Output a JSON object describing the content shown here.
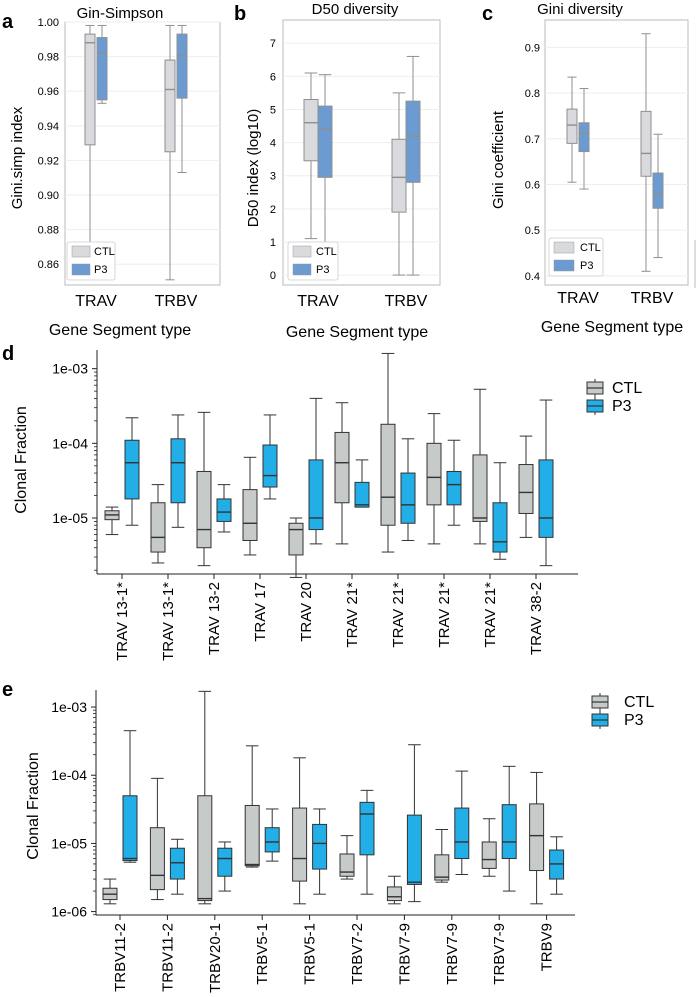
{
  "colors": {
    "ctl_top": "#d9dadd",
    "p3_top": "#6b9bd1",
    "ctl_bottom": "#c6cac9",
    "p3_bottom": "#22aee6",
    "whisker_top": "#8f8f8f",
    "whisker_bottom": "#333333"
  },
  "chart_data": [
    {
      "id": "a",
      "panel_label": "a",
      "type": "box",
      "title": "Gin-Simpson",
      "ylabel": "Gini.simp index",
      "xlabel": "Gene Segment type",
      "categories": [
        "TRAV",
        "TRBV"
      ],
      "ylim": [
        0.848,
        1.0
      ],
      "yticks": [
        0.86,
        0.88,
        0.9,
        0.92,
        0.94,
        0.96,
        0.98,
        1.0
      ],
      "ytick_labels": [
        "0.86",
        "0.88",
        "0.90",
        "0.92",
        "0.94",
        "0.96",
        "0.98",
        "1.00"
      ],
      "legend": [
        "CTL",
        "P3"
      ],
      "series": [
        {
          "name": "CTL",
          "boxes": [
            {
              "min": 0.86,
              "q1": 0.929,
              "median": 0.988,
              "q3": 0.993,
              "max": 0.998
            },
            {
              "min": 0.851,
              "q1": 0.925,
              "median": 0.961,
              "q3": 0.978,
              "max": 0.998
            }
          ]
        },
        {
          "name": "P3",
          "boxes": [
            {
              "min": 0.953,
              "q1": 0.955,
              "median": 0.982,
              "q3": 0.991,
              "max": 0.998
            },
            {
              "min": 0.913,
              "q1": 0.956,
              "median": 0.981,
              "q3": 0.993,
              "max": 0.998
            }
          ]
        }
      ]
    },
    {
      "id": "b",
      "panel_label": "b",
      "type": "box",
      "title": "D50 diversity",
      "ylabel": "D50 index (log10)",
      "xlabel": "Gene Segment type",
      "categories": [
        "TRAV",
        "TRBV"
      ],
      "ylim": [
        -0.3,
        7.7
      ],
      "yticks": [
        0,
        1,
        2,
        3,
        4,
        5,
        6,
        7
      ],
      "ytick_labels": [
        "0",
        "1",
        "2",
        "3",
        "4",
        "5",
        "6",
        "7"
      ],
      "legend": [
        "CTL",
        "P3"
      ],
      "series": [
        {
          "name": "CTL",
          "boxes": [
            {
              "min": 1.1,
              "q1": 3.45,
              "median": 4.6,
              "q3": 5.3,
              "max": 6.1
            },
            {
              "min": 0.0,
              "q1": 1.9,
              "median": 2.95,
              "q3": 4.1,
              "max": 5.5
            }
          ]
        },
        {
          "name": "P3",
          "boxes": [
            {
              "min": 0.9,
              "q1": 2.95,
              "median": 4.4,
              "q3": 5.1,
              "max": 6.05
            },
            {
              "min": 0.0,
              "q1": 2.8,
              "median": 4.2,
              "q3": 5.25,
              "max": 6.6
            }
          ]
        }
      ]
    },
    {
      "id": "c",
      "panel_label": "c",
      "type": "box",
      "title": "Gini diversity",
      "ylabel": "Gini coefficient",
      "xlabel": "Gene Segment type",
      "categories": [
        "TRAV",
        "TRBV"
      ],
      "ylim": [
        0.38,
        0.96
      ],
      "yticks": [
        0.4,
        0.5,
        0.6,
        0.7,
        0.8,
        0.9
      ],
      "ytick_labels": [
        "0.4",
        "0.5",
        "0.6",
        "0.7",
        "0.8",
        "0.9"
      ],
      "legend": [
        "CTL",
        "P3"
      ],
      "series": [
        {
          "name": "CTL",
          "boxes": [
            {
              "min": 0.605,
              "q1": 0.69,
              "median": 0.73,
              "q3": 0.765,
              "max": 0.835
            },
            {
              "min": 0.41,
              "q1": 0.618,
              "median": 0.668,
              "q3": 0.76,
              "max": 0.93
            }
          ]
        },
        {
          "name": "P3",
          "boxes": [
            {
              "min": 0.59,
              "q1": 0.672,
              "median": 0.713,
              "q3": 0.735,
              "max": 0.81
            },
            {
              "min": 0.44,
              "q1": 0.548,
              "median": 0.58,
              "q3": 0.625,
              "max": 0.71
            }
          ]
        }
      ]
    },
    {
      "id": "d",
      "panel_label": "d",
      "type": "box",
      "scale": "log",
      "title": "",
      "ylabel": "Clonal Fraction",
      "xlabel": "",
      "categories": [
        "TRAV 13-1*",
        "TRAV 13-1*",
        "TRAV 13-2",
        "TRAV 17",
        "TRAV 20",
        "TRAV 21*",
        "TRAV 21*",
        "TRAV 21*",
        "TRAV 21*",
        "TRAV 38-2"
      ],
      "ylim_log10": [
        -5.75,
        -2.75
      ],
      "yticks_log10": [
        -5,
        -4,
        -3
      ],
      "ytick_labels": [
        "1e-05",
        "1e-04",
        "1e-03"
      ],
      "legend": [
        "CTL",
        "P3"
      ],
      "series": [
        {
          "name": "CTL",
          "boxes": [
            {
              "min": 6e-06,
              "q1": 9.5e-06,
              "median": 1.1e-05,
              "q3": 1.25e-05,
              "max": 1.4e-05
            },
            {
              "min": 2.5e-06,
              "q1": 3.5e-06,
              "median": 5.5e-06,
              "q3": 1.6e-05,
              "max": 2.8e-05
            },
            {
              "min": 2.3e-06,
              "q1": 4e-06,
              "median": 7e-06,
              "q3": 4.2e-05,
              "max": 0.00026
            },
            {
              "min": 3.2e-06,
              "q1": 5e-06,
              "median": 8.5e-06,
              "q3": 2.4e-05,
              "max": 6.5e-05
            },
            {
              "min": 1.6e-06,
              "q1": 3.2e-06,
              "median": 7e-06,
              "q3": 8.5e-06,
              "max": 1e-05
            },
            {
              "min": 4.5e-06,
              "q1": 1.6e-05,
              "median": 5.5e-05,
              "q3": 0.00014,
              "max": 0.00035
            },
            {
              "min": 3.5e-06,
              "q1": 8e-06,
              "median": 1.9e-05,
              "q3": 0.00018,
              "max": 0.0016
            },
            {
              "min": 4.5e-06,
              "q1": 1.5e-05,
              "median": 3.5e-05,
              "q3": 0.0001,
              "max": 0.00025
            },
            {
              "min": 4.5e-06,
              "q1": 9e-06,
              "median": 1e-05,
              "q3": 7e-05,
              "max": 0.00053
            },
            {
              "min": 5.5e-06,
              "q1": 1.15e-05,
              "median": 2.2e-05,
              "q3": 5.2e-05,
              "max": 0.000125
            }
          ]
        },
        {
          "name": "P3",
          "boxes": [
            {
              "min": 8e-06,
              "q1": 1.8e-05,
              "median": 5.5e-05,
              "q3": 0.00011,
              "max": 0.00022
            },
            {
              "min": 7.5e-06,
              "q1": 1.6e-05,
              "median": 5.5e-05,
              "q3": 0.000115,
              "max": 0.00024
            },
            {
              "min": 6.5e-06,
              "q1": 9e-06,
              "median": 1.2e-05,
              "q3": 1.8e-05,
              "max": 2.8e-05
            },
            {
              "min": 1.8e-05,
              "q1": 2.6e-05,
              "median": 3.7e-05,
              "q3": 9.5e-05,
              "max": 0.00024
            },
            {
              "min": 4.5e-06,
              "q1": 7e-06,
              "median": 1e-05,
              "q3": 6e-05,
              "max": 0.0004
            },
            {
              "min": 1.4e-05,
              "q1": 1.4e-05,
              "median": 1.5e-05,
              "q3": 3e-05,
              "max": 6e-05
            },
            {
              "min": 5e-06,
              "q1": 8.5e-06,
              "median": 1.5e-05,
              "q3": 4e-05,
              "max": 0.000115
            },
            {
              "min": 8e-06,
              "q1": 1.5e-05,
              "median": 2.8e-05,
              "q3": 4.2e-05,
              "max": 0.00011
            },
            {
              "min": 2.8e-06,
              "q1": 3.5e-06,
              "median": 4.8e-06,
              "q3": 1.6e-05,
              "max": 5.5e-05
            },
            {
              "min": 2.3e-06,
              "q1": 5.5e-06,
              "median": 1e-05,
              "q3": 6e-05,
              "max": 0.00038
            }
          ]
        }
      ]
    },
    {
      "id": "e",
      "panel_label": "e",
      "type": "box",
      "scale": "log",
      "title": "",
      "ylabel": "Clonal Fraction",
      "xlabel": "",
      "categories": [
        "TRBV11-2",
        "TRBV11-2",
        "TRBV20-1",
        "TRBV5-1",
        "TRBV5-1",
        "TRBV7-2",
        "TRBV7-9",
        "TRBV7-9",
        "TRBV7-9",
        "TRBV9"
      ],
      "ylim_log10": [
        -6.05,
        -2.75
      ],
      "yticks_log10": [
        -6,
        -5,
        -4,
        -3
      ],
      "ytick_labels": [
        "1e-06",
        "1e-05",
        "1e-04",
        "1e-03"
      ],
      "legend": [
        "CTL",
        "P3"
      ],
      "series": [
        {
          "name": "CTL",
          "boxes": [
            {
              "min": 1.3e-06,
              "q1": 1.5e-06,
              "median": 1.8e-06,
              "q3": 2.2e-06,
              "max": 3e-06
            },
            {
              "min": 1.5e-06,
              "q1": 2.1e-06,
              "median": 3.4e-06,
              "q3": 1.7e-05,
              "max": 9e-05
            },
            {
              "min": 1.3e-06,
              "q1": 1.45e-06,
              "median": 1.55e-06,
              "q3": 5e-05,
              "max": 0.0017
            },
            {
              "min": 4.5e-06,
              "q1": 4.7e-06,
              "median": 4.9e-06,
              "q3": 3.6e-05,
              "max": 0.00027
            },
            {
              "min": 1.3e-06,
              "q1": 2.8e-06,
              "median": 6e-06,
              "q3": 3.3e-05,
              "max": 0.00018
            },
            {
              "min": 3e-06,
              "q1": 3.3e-06,
              "median": 3.8e-06,
              "q3": 7e-06,
              "max": 1.3e-05
            },
            {
              "min": 1.3e-06,
              "q1": 1.45e-06,
              "median": 1.65e-06,
              "q3": 2.3e-06,
              "max": 3.3e-06
            },
            {
              "min": 2.7e-06,
              "q1": 2.9e-06,
              "median": 3.2e-06,
              "q3": 6.8e-06,
              "max": 1.6e-05
            },
            {
              "min": 3.3e-06,
              "q1": 4.3e-06,
              "median": 5.8e-06,
              "q3": 1.05e-05,
              "max": 2.3e-05
            },
            {
              "min": 1.3e-06,
              "q1": 4e-06,
              "median": 1.3e-05,
              "q3": 3.8e-05,
              "max": 0.00011
            }
          ]
        },
        {
          "name": "P3",
          "boxes": [
            {
              "min": 5.3e-06,
              "q1": 5.6e-06,
              "median": 6e-06,
              "q3": 5e-05,
              "max": 0.00045
            },
            {
              "min": 1.8e-06,
              "q1": 3e-06,
              "median": 5.2e-06,
              "q3": 8.5e-06,
              "max": 1.15e-05
            },
            {
              "min": 2e-06,
              "q1": 3.3e-06,
              "median": 6e-06,
              "q3": 8.5e-06,
              "max": 1.05e-05
            },
            {
              "min": 5.5e-06,
              "q1": 7.5e-06,
              "median": 1.05e-05,
              "q3": 1.7e-05,
              "max": 3.2e-05
            },
            {
              "min": 1.8e-06,
              "q1": 4.2e-06,
              "median": 1e-05,
              "q3": 1.9e-05,
              "max": 3.2e-05
            },
            {
              "min": 1.8e-06,
              "q1": 6.8e-06,
              "median": 2.7e-05,
              "q3": 4e-05,
              "max": 6e-05
            },
            {
              "min": 1.4e-06,
              "q1": 2.5e-06,
              "median": 2.7e-06,
              "q3": 2.6e-05,
              "max": 0.00028
            },
            {
              "min": 3.5e-06,
              "q1": 6e-06,
              "median": 1.05e-05,
              "q3": 3.3e-05,
              "max": 0.000115
            },
            {
              "min": 2e-06,
              "q1": 6e-06,
              "median": 1.05e-05,
              "q3": 3.7e-05,
              "max": 0.000135
            },
            {
              "min": 1.8e-06,
              "q1": 3e-06,
              "median": 5e-06,
              "q3": 8e-06,
              "max": 1.25e-05
            }
          ]
        }
      ]
    }
  ]
}
